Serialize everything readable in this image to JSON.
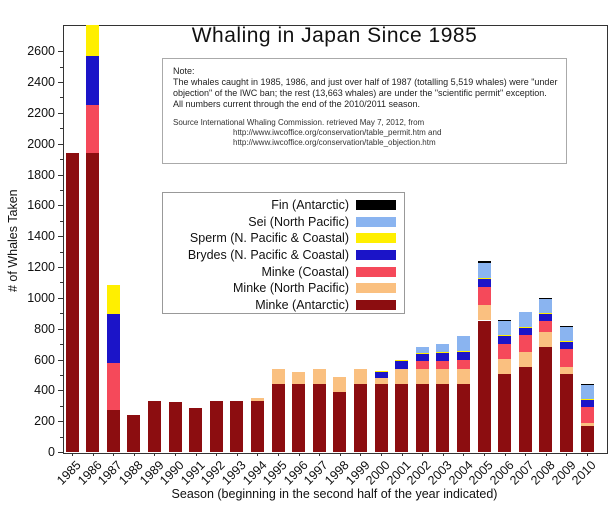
{
  "title": "Whaling in Japan Since 1985",
  "y_axis": {
    "label": "# of Whales Taken"
  },
  "x_axis": {
    "label": "Season (beginning in the second half of the year indicated)"
  },
  "note": {
    "lines": [
      "Note:",
      "The whales caught in 1985, 1986, and just over half of 1987 (totalling 5,519 whales) were \"under",
      "objection\" of the IWC ban; the rest (13,663 whales) are under the \"scientific permit\" exception.",
      "All numbers current through the end of the 2010/2011 season."
    ],
    "source_lines": [
      "Source  International Whaling Commission. retrieved May 7, 2012, from",
      "http://www.iwcoffice.org/conservation/table_permit.htm  and",
      "http://www.iwcoffice.org/conservation/table_objection.htm"
    ]
  },
  "legend_top_to_bottom": [
    {
      "label": "Fin (Antarctic)",
      "color": "#000000"
    },
    {
      "label": "Sei (North Pacific)",
      "color": "#8ab4f0"
    },
    {
      "label": "Sperm (N. Pacific & Coastal)",
      "color": "#ffef00"
    },
    {
      "label": "Brydes (N. Pacific & Coastal)",
      "color": "#1b14c8"
    },
    {
      "label": "Minke (Coastal)",
      "color": "#f5495a"
    },
    {
      "label": "Minke (North Pacific)",
      "color": "#fac080"
    },
    {
      "label": "Minke (Antarctic)",
      "color": "#8c0d10"
    }
  ],
  "chart_data": {
    "type": "bar",
    "stacked": true,
    "title": "Whaling in Japan Since 1985",
    "xlabel": "Season (beginning in the second half of the year indicated)",
    "ylabel": "# of Whales Taken",
    "ylim": [
      0,
      2770
    ],
    "ytick_step": 200,
    "ytick_max": 2600,
    "grid_step": 100,
    "grid": true,
    "legend_position": "center-left-box",
    "categories": [
      1985,
      1986,
      1987,
      1988,
      1989,
      1990,
      1991,
      1992,
      1993,
      1994,
      1995,
      1996,
      1997,
      1998,
      1999,
      2000,
      2001,
      2002,
      2003,
      2004,
      2005,
      2006,
      2007,
      2008,
      2009,
      2010
    ],
    "series": [
      {
        "name": "Minke (Antarctic)",
        "color": "#8c0d10",
        "values": [
          1941,
          1941,
          273,
          241,
          330,
          327,
          288,
          330,
          330,
          330,
          440,
          440,
          438,
          389,
          439,
          440,
          440,
          440,
          440,
          440,
          853,
          505,
          551,
          679,
          506,
          170
        ]
      },
      {
        "name": "Minke (North Pacific)",
        "color": "#fac080",
        "values": [
          0,
          0,
          0,
          0,
          0,
          0,
          0,
          0,
          0,
          21,
          100,
          77,
          100,
          100,
          100,
          40,
          100,
          100,
          100,
          100,
          100,
          100,
          100,
          100,
          43,
          19
        ]
      },
      {
        "name": "Minke (Coastal)",
        "color": "#f5495a",
        "values": [
          0,
          311,
          304,
          0,
          0,
          0,
          0,
          0,
          0,
          0,
          0,
          0,
          0,
          0,
          0,
          0,
          0,
          50,
          50,
          59,
          120,
          95,
          107,
          69,
          119,
          100
        ]
      },
      {
        "name": "Brydes (N. Pacific & Coastal)",
        "color": "#1b14c8",
        "values": [
          0,
          317,
          317,
          0,
          0,
          0,
          0,
          0,
          0,
          0,
          0,
          0,
          0,
          0,
          0,
          43,
          50,
          50,
          50,
          51,
          50,
          50,
          50,
          50,
          50,
          50
        ]
      },
      {
        "name": "Sperm (N. Pacific & Coastal)",
        "color": "#ffef00",
        "values": [
          0,
          200,
          188,
          0,
          0,
          0,
          0,
          0,
          0,
          0,
          0,
          0,
          0,
          0,
          0,
          5,
          8,
          5,
          10,
          3,
          5,
          6,
          3,
          2,
          1,
          3
        ]
      },
      {
        "name": "Sei (North Pacific)",
        "color": "#8ab4f0",
        "values": [
          0,
          0,
          0,
          0,
          0,
          0,
          0,
          0,
          0,
          0,
          0,
          0,
          0,
          0,
          0,
          0,
          0,
          39,
          50,
          100,
          100,
          100,
          100,
          100,
          100,
          100
        ]
      },
      {
        "name": "Fin (Antarctic)",
        "color": "#000000",
        "values": [
          0,
          0,
          0,
          0,
          0,
          0,
          0,
          0,
          0,
          0,
          0,
          0,
          0,
          0,
          0,
          0,
          0,
          0,
          0,
          0,
          10,
          3,
          0,
          1,
          1,
          2
        ]
      }
    ]
  }
}
